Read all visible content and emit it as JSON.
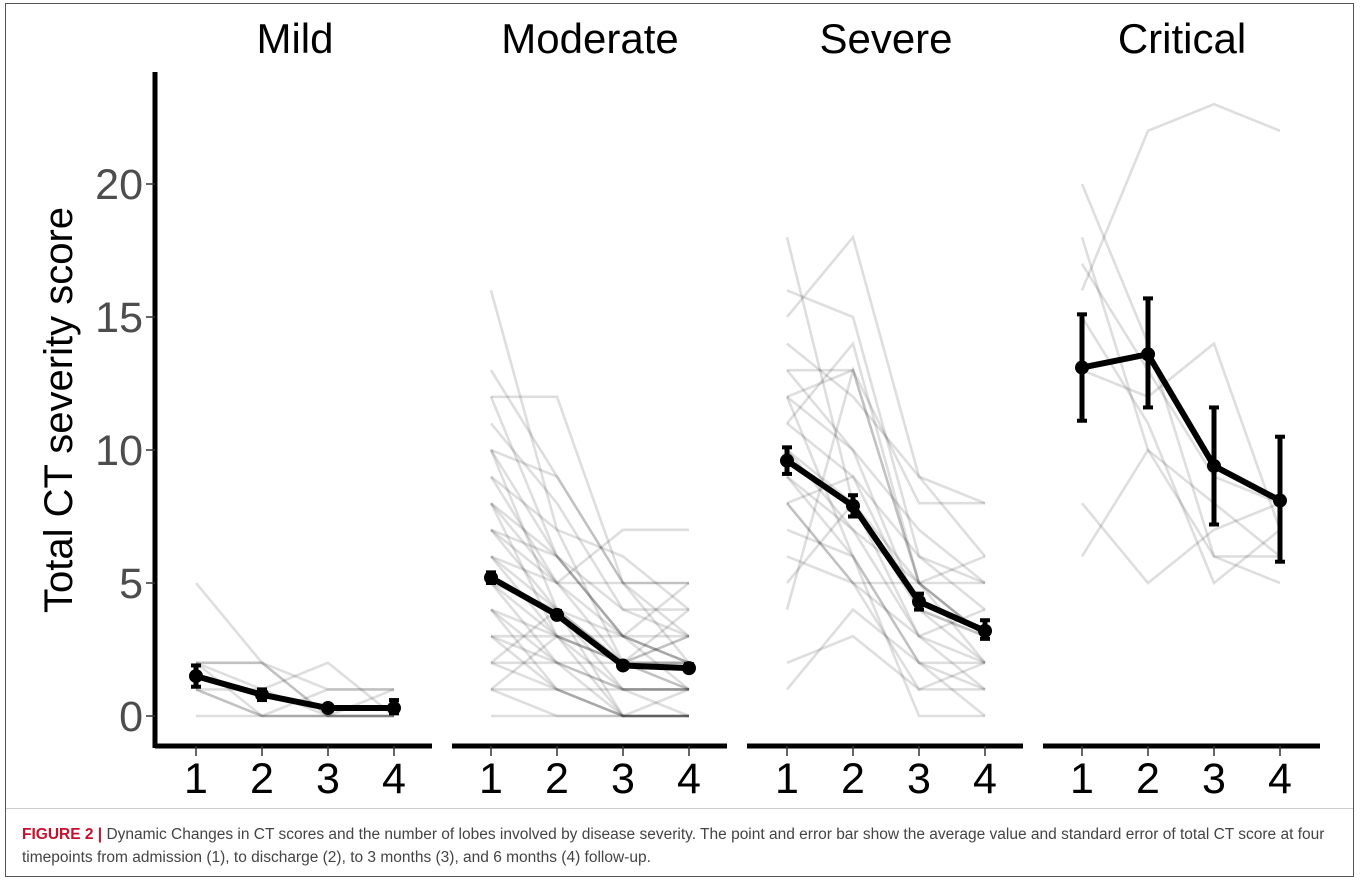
{
  "chart_data": {
    "type": "line",
    "ylabel": "Total CT severity score",
    "xlabel": "",
    "ylim": [
      -1,
      24
    ],
    "y_ticks": [
      0,
      5,
      10,
      15,
      20
    ],
    "x_ticks": [
      "1",
      "2",
      "3",
      "4"
    ],
    "grid": false,
    "mean_line_color": "#000000",
    "individual_line_color": "#000000",
    "facets": [
      {
        "title": "Mild",
        "x": [
          1,
          2,
          3,
          4
        ],
        "mean": [
          1.5,
          0.8,
          0.3,
          0.3
        ],
        "error_low": [
          1.1,
          0.6,
          0.2,
          0.1
        ],
        "error_high": [
          1.9,
          1.0,
          0.4,
          0.6
        ],
        "individual": [
          [
            5,
            2,
            0,
            0
          ],
          [
            2,
            2,
            0,
            0
          ],
          [
            2,
            0,
            1,
            1
          ],
          [
            1,
            1,
            2,
            0
          ],
          [
            2,
            1,
            0,
            1
          ],
          [
            0,
            0,
            0,
            0
          ],
          [
            1,
            0,
            0,
            0
          ],
          [
            2,
            2,
            1,
            1
          ],
          [
            1,
            0,
            0,
            0
          ]
        ]
      },
      {
        "title": "Moderate",
        "x": [
          1,
          2,
          3,
          4
        ],
        "mean": [
          5.2,
          3.8,
          1.9,
          1.8
        ],
        "error_low": [
          5.0,
          3.7,
          1.8,
          1.7
        ],
        "error_high": [
          5.4,
          3.95,
          2.0,
          1.95
        ],
        "individual": [
          [
            16,
            7,
            2,
            1
          ],
          [
            13,
            9,
            5,
            3
          ],
          [
            12,
            12,
            5,
            2
          ],
          [
            11,
            8,
            4,
            3
          ],
          [
            10,
            6,
            3,
            2
          ],
          [
            10,
            9,
            5,
            5
          ],
          [
            9,
            7,
            6,
            4
          ],
          [
            8,
            6,
            3,
            1
          ],
          [
            8,
            5,
            5,
            5
          ],
          [
            7,
            4,
            2,
            2
          ],
          [
            7,
            6,
            4,
            4
          ],
          [
            6,
            3,
            0,
            0
          ],
          [
            6,
            5,
            3,
            3
          ],
          [
            5,
            3,
            1,
            1
          ],
          [
            5,
            4,
            0,
            0
          ],
          [
            4,
            2,
            1,
            1
          ],
          [
            4,
            3,
            2,
            2
          ],
          [
            3,
            2,
            0,
            0
          ],
          [
            3,
            3,
            2,
            2
          ],
          [
            2,
            1,
            0,
            0
          ],
          [
            2,
            2,
            1,
            1
          ],
          [
            1,
            0,
            0,
            0
          ],
          [
            1,
            1,
            0,
            1
          ],
          [
            0,
            0,
            0,
            0
          ],
          [
            9,
            5,
            2,
            1
          ],
          [
            12,
            6,
            3,
            2
          ],
          [
            6,
            4,
            1,
            0
          ],
          [
            4,
            1,
            0,
            0
          ],
          [
            5,
            2,
            2,
            3
          ],
          [
            3,
            1,
            1,
            1
          ],
          [
            8,
            3,
            3,
            2
          ],
          [
            10,
            4,
            2,
            3
          ],
          [
            7,
            5,
            7,
            7
          ],
          [
            2,
            4,
            3,
            5
          ],
          [
            1,
            3,
            2,
            4
          ]
        ]
      },
      {
        "title": "Severe",
        "x": [
          1,
          2,
          3,
          4
        ],
        "mean": [
          9.6,
          7.9,
          4.3,
          3.2
        ],
        "error_low": [
          9.1,
          7.5,
          4.0,
          2.9
        ],
        "error_high": [
          10.1,
          8.3,
          4.6,
          3.6
        ],
        "individual": [
          [
            18,
            8,
            5,
            2
          ],
          [
            16,
            15,
            6,
            5
          ],
          [
            15,
            18,
            9,
            8
          ],
          [
            14,
            12,
            9,
            6
          ],
          [
            13,
            13,
            5,
            3
          ],
          [
            12,
            13,
            8,
            8
          ],
          [
            12,
            10,
            4,
            2
          ],
          [
            11,
            9,
            6,
            4
          ],
          [
            10,
            7,
            5,
            3
          ],
          [
            10,
            8,
            3,
            1
          ],
          [
            9,
            6,
            2,
            2
          ],
          [
            8,
            5,
            5,
            5
          ],
          [
            8,
            9,
            4,
            3
          ],
          [
            7,
            6,
            0,
            0
          ],
          [
            6,
            5,
            3,
            2
          ],
          [
            5,
            8,
            4,
            3
          ],
          [
            4,
            13,
            5,
            3
          ],
          [
            2,
            3,
            1,
            1
          ],
          [
            1,
            4,
            2,
            0
          ],
          [
            13,
            10,
            7,
            5
          ],
          [
            11,
            14,
            5,
            6
          ],
          [
            9,
            7,
            3,
            4
          ],
          [
            12,
            6,
            2,
            1
          ],
          [
            8,
            5,
            1,
            2
          ]
        ]
      },
      {
        "title": "Critical",
        "x": [
          1,
          2,
          3,
          4
        ],
        "mean": [
          13.1,
          13.6,
          9.4,
          8.1
        ],
        "error_low": [
          11.1,
          11.6,
          7.2,
          5.8
        ],
        "error_high": [
          15.1,
          15.7,
          11.6,
          10.5
        ],
        "individual": [
          [
            20,
            14,
            6,
            5
          ],
          [
            18,
            10,
            6,
            6
          ],
          [
            17,
            13,
            9,
            8
          ],
          [
            16,
            22,
            23,
            22
          ],
          [
            15,
            11,
            5,
            7
          ],
          [
            13,
            12,
            14,
            7
          ],
          [
            8,
            5,
            7,
            8
          ],
          [
            6,
            10,
            8,
            6
          ]
        ]
      }
    ]
  },
  "caption": {
    "label": "FIGURE 2 |",
    "text": " Dynamic Changes in CT scores and the number of lobes involved by disease severity. The point and error bar show the average value and standard error of total CT score at four timepoints from admission (1), to discharge (2), to 3 months (3), and 6 months (4) follow-up."
  }
}
